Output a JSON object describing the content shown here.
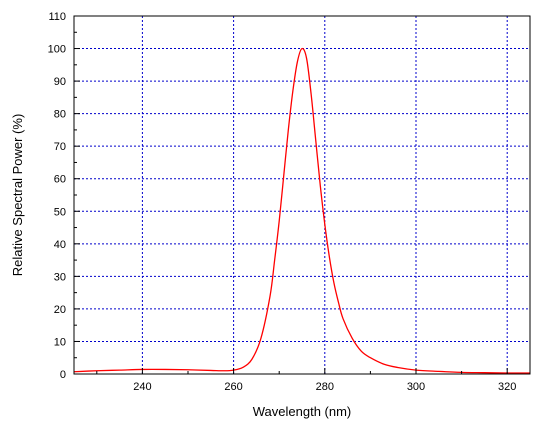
{
  "chart_data": {
    "type": "line",
    "title": "",
    "xlabel": "Wavelength (nm)",
    "ylabel": "Relative Spectral Power (%)",
    "xlim": [
      225,
      325
    ],
    "ylim": [
      0,
      110
    ],
    "x_ticks": [
      240,
      260,
      280,
      300,
      320
    ],
    "y_ticks": [
      0,
      10,
      20,
      30,
      40,
      50,
      60,
      70,
      80,
      90,
      100,
      110
    ],
    "grid": true,
    "grid_color": "#0000cc",
    "series": [
      {
        "color": "#ff0000",
        "x": [
          225,
          230,
          235,
          240,
          245,
          250,
          255,
          258,
          260,
          262,
          264,
          266,
          268,
          269,
          270,
          271,
          272,
          273,
          274,
          275,
          276,
          277,
          278,
          279,
          280,
          281,
          282,
          283,
          284,
          286,
          288,
          290,
          293,
          296,
          300,
          305,
          310,
          315,
          320,
          325
        ],
        "y": [
          0.7,
          1.0,
          1.2,
          1.4,
          1.4,
          1.3,
          1.1,
          1.0,
          1.2,
          2.0,
          4.5,
          11,
          24,
          35,
          47,
          61,
          75,
          87,
          96,
          100,
          97,
          86,
          72,
          58,
          46,
          36,
          28,
          22,
          17,
          11,
          7,
          5,
          3,
          2,
          1.2,
          0.8,
          0.5,
          0.4,
          0.3,
          0.3
        ]
      }
    ]
  }
}
